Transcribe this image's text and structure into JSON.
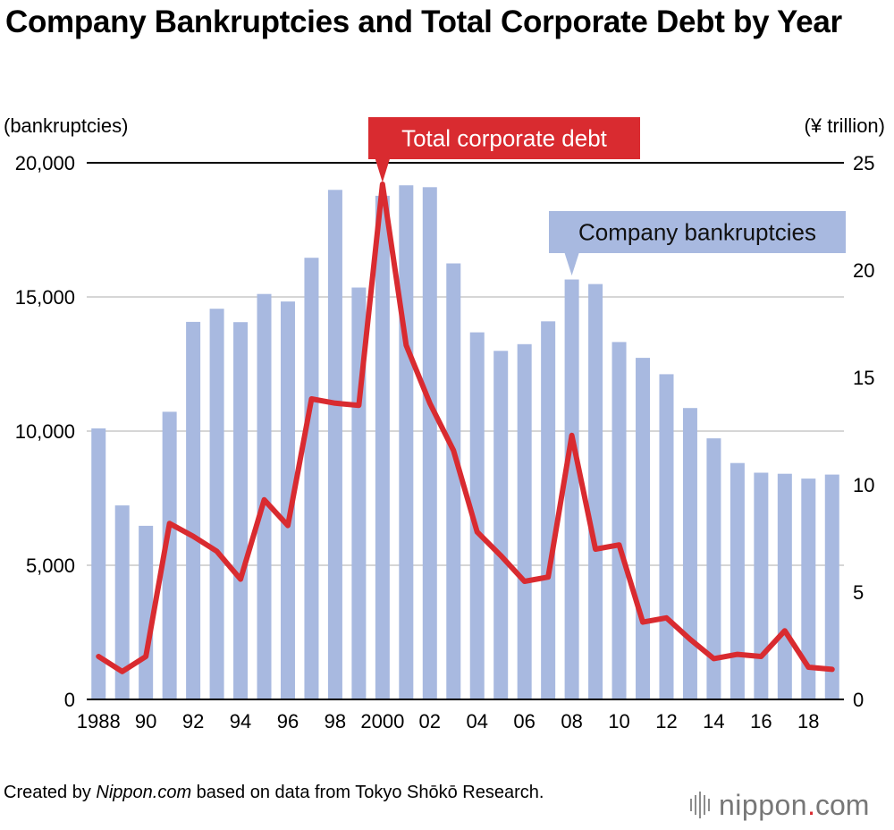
{
  "chart_data": {
    "type": "bar+line",
    "title": "Company Bankruptcies and Total Corporate Debt by Year",
    "left_axis_label": "(bankruptcies)",
    "right_axis_label": "(¥ trillion)",
    "left_ylim": [
      0,
      20000
    ],
    "right_ylim": [
      0,
      25
    ],
    "left_ticks": [
      "0",
      "5,000",
      "10,000",
      "15,000",
      "20,000"
    ],
    "right_ticks": [
      "0",
      "5",
      "10",
      "15",
      "20",
      "25"
    ],
    "years": [
      1988,
      1989,
      1990,
      1991,
      1992,
      1993,
      1994,
      1995,
      1996,
      1997,
      1998,
      1999,
      2000,
      2001,
      2002,
      2003,
      2004,
      2005,
      2006,
      2007,
      2008,
      2009,
      2010,
      2011,
      2012,
      2013,
      2014,
      2015,
      2016,
      2017,
      2018,
      2019
    ],
    "x_tick_labels": [
      {
        "index": 0,
        "label": "1988"
      },
      {
        "index": 2,
        "label": "90"
      },
      {
        "index": 4,
        "label": "92"
      },
      {
        "index": 6,
        "label": "94"
      },
      {
        "index": 8,
        "label": "96"
      },
      {
        "index": 10,
        "label": "98"
      },
      {
        "index": 12,
        "label": "2000"
      },
      {
        "index": 14,
        "label": "02"
      },
      {
        "index": 16,
        "label": "04"
      },
      {
        "index": 18,
        "label": "06"
      },
      {
        "index": 20,
        "label": "08"
      },
      {
        "index": 22,
        "label": "10"
      },
      {
        "index": 24,
        "label": "12"
      },
      {
        "index": 26,
        "label": "14"
      },
      {
        "index": 28,
        "label": "16"
      },
      {
        "index": 30,
        "label": "18"
      }
    ],
    "series": [
      {
        "name": "Company bankruptcies",
        "type": "bar",
        "axis": "left",
        "color": "#a8b9e0",
        "values": [
          10100,
          7230,
          6470,
          10720,
          14070,
          14560,
          14060,
          15110,
          14830,
          16460,
          18990,
          15350,
          18770,
          19160,
          19090,
          16250,
          13680,
          12990,
          13240,
          14090,
          15650,
          15480,
          13320,
          12730,
          12120,
          10860,
          9730,
          8810,
          8450,
          8410,
          8230,
          8380
        ]
      },
      {
        "name": "Total corporate debt",
        "type": "line",
        "axis": "right",
        "color": "#d92b30",
        "values": [
          2.0,
          1.3,
          2.0,
          8.2,
          7.6,
          6.9,
          5.6,
          9.3,
          8.1,
          14.0,
          13.8,
          13.7,
          24.0,
          16.5,
          13.8,
          11.6,
          7.8,
          6.7,
          5.5,
          5.7,
          12.3,
          7.0,
          7.2,
          3.6,
          3.8,
          2.8,
          1.9,
          2.1,
          2.0,
          3.2,
          1.5,
          1.4
        ]
      }
    ],
    "annotations": [
      {
        "text": "Total corporate debt",
        "series": "Total corporate debt",
        "index": 12
      },
      {
        "text": "Company bankruptcies",
        "series": "Company bankruptcies",
        "index": 20
      }
    ]
  },
  "footer": {
    "prefix": "Created by ",
    "source_site": "Nippon.com",
    "suffix": " based on data from Tokyo Shōkō Research."
  },
  "logo": {
    "wordmark": "nippon",
    "dot": ".",
    "tld": "com"
  }
}
